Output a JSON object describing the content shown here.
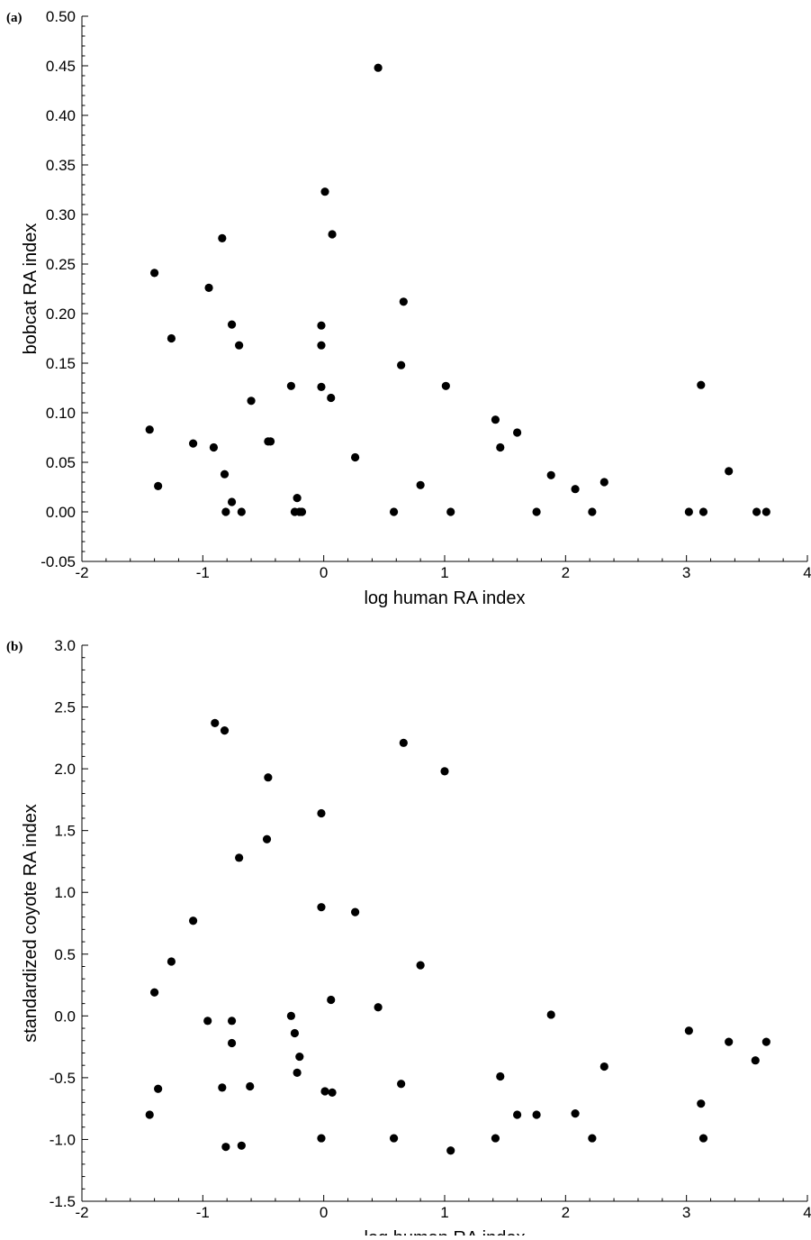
{
  "chart_data": [
    {
      "type": "scatter",
      "panel_label": "(a)",
      "title": "",
      "xlabel": "log human RA index",
      "ylabel": "bobcat RA index",
      "xlim": [
        -2,
        4
      ],
      "ylim": [
        -0.05,
        0.5
      ],
      "xticks": [
        -2,
        -1,
        0,
        1,
        2,
        3,
        4
      ],
      "yticks": [
        -0.05,
        0.0,
        0.05,
        0.1,
        0.15,
        0.2,
        0.25,
        0.3,
        0.35,
        0.4,
        0.45,
        0.5
      ],
      "xtick_labels": [
        "-2",
        "-1",
        "0",
        "1",
        "2",
        "3",
        "4"
      ],
      "ytick_labels": [
        "-0.05",
        "0.00",
        "0.05",
        "0.10",
        "0.15",
        "0.20",
        "0.25",
        "0.30",
        "0.35",
        "0.40",
        "0.45",
        "0.50"
      ],
      "grid": false,
      "points": [
        {
          "x": 0.45,
          "y": 0.448
        },
        {
          "x": 0.01,
          "y": 0.323
        },
        {
          "x": -0.84,
          "y": 0.276
        },
        {
          "x": 0.07,
          "y": 0.28
        },
        {
          "x": -1.4,
          "y": 0.241
        },
        {
          "x": -0.95,
          "y": 0.226
        },
        {
          "x": 0.66,
          "y": 0.212
        },
        {
          "x": -0.76,
          "y": 0.189
        },
        {
          "x": -0.02,
          "y": 0.188
        },
        {
          "x": -1.26,
          "y": 0.175
        },
        {
          "x": -0.7,
          "y": 0.168
        },
        {
          "x": -0.02,
          "y": 0.168
        },
        {
          "x": 0.64,
          "y": 0.148
        },
        {
          "x": 1.01,
          "y": 0.127
        },
        {
          "x": -0.27,
          "y": 0.127
        },
        {
          "x": -0.02,
          "y": 0.126
        },
        {
          "x": 3.12,
          "y": 0.128
        },
        {
          "x": 0.06,
          "y": 0.115
        },
        {
          "x": -0.6,
          "y": 0.112
        },
        {
          "x": 1.42,
          "y": 0.093
        },
        {
          "x": -1.44,
          "y": 0.083
        },
        {
          "x": 1.6,
          "y": 0.08
        },
        {
          "x": -1.08,
          "y": 0.069
        },
        {
          "x": -0.46,
          "y": 0.071
        },
        {
          "x": -0.44,
          "y": 0.071
        },
        {
          "x": -0.91,
          "y": 0.065
        },
        {
          "x": 1.46,
          "y": 0.065
        },
        {
          "x": 0.26,
          "y": 0.055
        },
        {
          "x": 3.35,
          "y": 0.041
        },
        {
          "x": -0.82,
          "y": 0.038
        },
        {
          "x": 1.88,
          "y": 0.037
        },
        {
          "x": 2.32,
          "y": 0.03
        },
        {
          "x": 0.8,
          "y": 0.027
        },
        {
          "x": -1.37,
          "y": 0.026
        },
        {
          "x": 2.08,
          "y": 0.023
        },
        {
          "x": -0.22,
          "y": 0.014
        },
        {
          "x": -0.76,
          "y": 0.01
        },
        {
          "x": -0.81,
          "y": 0.0
        },
        {
          "x": -0.68,
          "y": 0.0
        },
        {
          "x": -0.24,
          "y": 0.0
        },
        {
          "x": -0.2,
          "y": 0.0
        },
        {
          "x": -0.18,
          "y": 0.0
        },
        {
          "x": 0.58,
          "y": 0.0
        },
        {
          "x": 1.05,
          "y": 0.0
        },
        {
          "x": 1.76,
          "y": 0.0
        },
        {
          "x": 2.22,
          "y": 0.0
        },
        {
          "x": 3.02,
          "y": 0.0
        },
        {
          "x": 3.14,
          "y": 0.0
        },
        {
          "x": 3.58,
          "y": 0.0
        },
        {
          "x": 3.66,
          "y": 0.0
        }
      ]
    },
    {
      "type": "scatter",
      "panel_label": "(b)",
      "title": "",
      "xlabel": "log human RA index",
      "ylabel": "standardized coyote RA index",
      "xlim": [
        -2,
        4
      ],
      "ylim": [
        -1.5,
        3.0
      ],
      "xticks": [
        -2,
        -1,
        0,
        1,
        2,
        3,
        4
      ],
      "yticks": [
        -1.5,
        -1.0,
        -0.5,
        0.0,
        0.5,
        1.0,
        1.5,
        2.0,
        2.5,
        3.0
      ],
      "xtick_labels": [
        "-2",
        "-1",
        "0",
        "1",
        "2",
        "3",
        "4"
      ],
      "ytick_labels": [
        "-1.5",
        "-1.0",
        "-0.5",
        "0.0",
        "0.5",
        "1.0",
        "1.5",
        "2.0",
        "2.5",
        "3.0"
      ],
      "grid": false,
      "points": [
        {
          "x": -0.9,
          "y": 2.37
        },
        {
          "x": -0.82,
          "y": 2.31
        },
        {
          "x": 0.66,
          "y": 2.21
        },
        {
          "x": 1.0,
          "y": 1.98
        },
        {
          "x": -0.46,
          "y": 1.93
        },
        {
          "x": -0.02,
          "y": 1.64
        },
        {
          "x": -0.47,
          "y": 1.43
        },
        {
          "x": -0.7,
          "y": 1.28
        },
        {
          "x": -0.02,
          "y": 0.88
        },
        {
          "x": 0.26,
          "y": 0.84
        },
        {
          "x": -1.08,
          "y": 0.77
        },
        {
          "x": -1.26,
          "y": 0.44
        },
        {
          "x": 0.8,
          "y": 0.41
        },
        {
          "x": -1.4,
          "y": 0.19
        },
        {
          "x": 0.06,
          "y": 0.13
        },
        {
          "x": 0.45,
          "y": 0.07
        },
        {
          "x": -0.27,
          "y": 0.0
        },
        {
          "x": 1.88,
          "y": 0.01
        },
        {
          "x": -0.96,
          "y": -0.04
        },
        {
          "x": -0.76,
          "y": -0.04
        },
        {
          "x": -0.24,
          "y": -0.14
        },
        {
          "x": 3.02,
          "y": -0.12
        },
        {
          "x": -0.76,
          "y": -0.22
        },
        {
          "x": 3.35,
          "y": -0.21
        },
        {
          "x": 3.66,
          "y": -0.21
        },
        {
          "x": -0.2,
          "y": -0.33
        },
        {
          "x": 3.57,
          "y": -0.36
        },
        {
          "x": 2.32,
          "y": -0.41
        },
        {
          "x": -0.22,
          "y": -0.46
        },
        {
          "x": 1.46,
          "y": -0.49
        },
        {
          "x": 0.64,
          "y": -0.55
        },
        {
          "x": -1.37,
          "y": -0.59
        },
        {
          "x": -0.84,
          "y": -0.58
        },
        {
          "x": -0.61,
          "y": -0.57
        },
        {
          "x": 0.01,
          "y": -0.61
        },
        {
          "x": 0.07,
          "y": -0.62
        },
        {
          "x": 3.12,
          "y": -0.71
        },
        {
          "x": -1.44,
          "y": -0.8
        },
        {
          "x": 1.6,
          "y": -0.8
        },
        {
          "x": 1.76,
          "y": -0.8
        },
        {
          "x": 2.08,
          "y": -0.79
        },
        {
          "x": -0.02,
          "y": -0.99
        },
        {
          "x": 0.58,
          "y": -0.99
        },
        {
          "x": 1.42,
          "y": -0.99
        },
        {
          "x": 2.22,
          "y": -0.99
        },
        {
          "x": 3.14,
          "y": -0.99
        },
        {
          "x": -0.81,
          "y": -1.06
        },
        {
          "x": -0.68,
          "y": -1.05
        },
        {
          "x": 1.05,
          "y": -1.09
        }
      ]
    }
  ]
}
